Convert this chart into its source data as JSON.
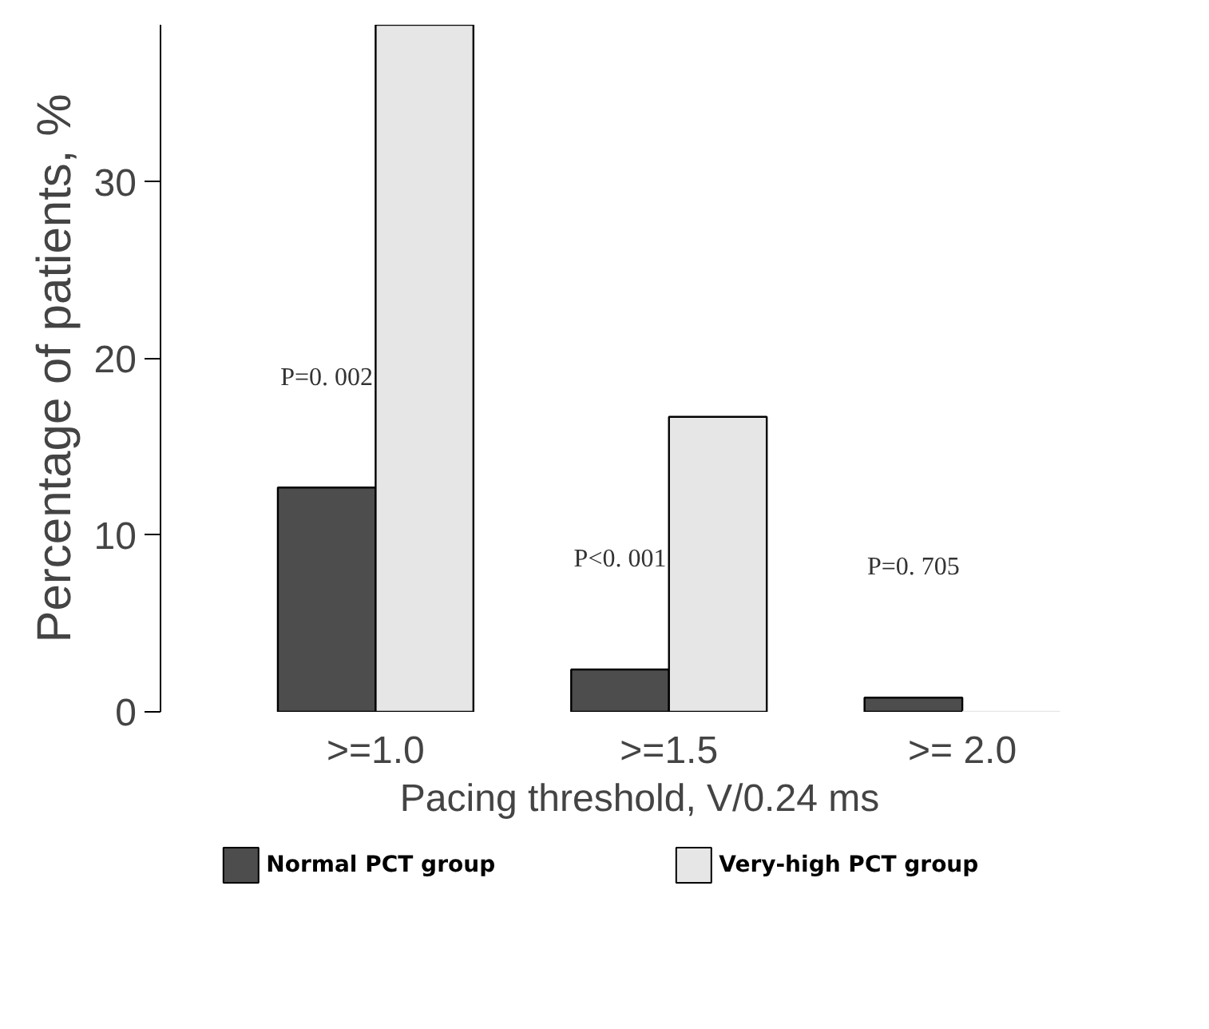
{
  "chart_data": {
    "type": "bar",
    "xlabel": "Pacing threshold, V/0.24 ms",
    "ylabel": "Percentage of patients, %",
    "categories": [
      ">=1.0",
      ">=1.5",
      ">= 2.0"
    ],
    "series": [
      {
        "name": "Normal PCT group",
        "color": "#4d4d4d",
        "values": [
          12.7,
          2.4,
          0.8
        ]
      },
      {
        "name": "Very-high PCT group",
        "color": "#e6e6e6",
        "values": [
          38.9,
          16.7,
          0
        ]
      }
    ],
    "ylim": [
      0,
      38.9
    ],
    "yticks": [
      0,
      10,
      20,
      30
    ],
    "grid": false,
    "legend": "bottom",
    "annotations": [
      "P=0. 002",
      "P<0. 001",
      "P=0. 705"
    ]
  }
}
